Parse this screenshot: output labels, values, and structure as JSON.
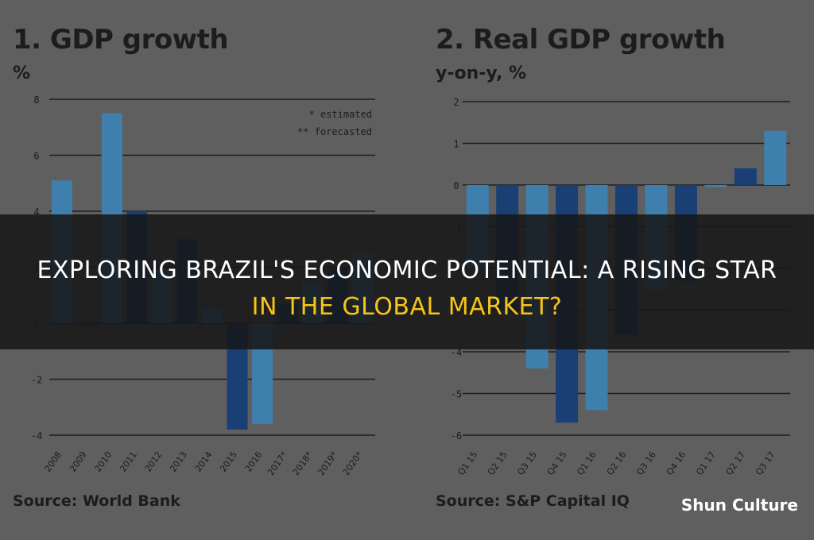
{
  "headline": {
    "line1": "EXPLORING BRAZIL'S ECONOMIC POTENTIAL: A RISING STAR",
    "line2": "IN THE GLOBAL MARKET?"
  },
  "brand": "Shun Culture",
  "colors": {
    "light_bar": "#3f7fae",
    "dark_bar": "#1a3f75",
    "gridline": "#1e1e1e",
    "text": "#1c1c1c",
    "background": "#5f5f5f",
    "headline_accent": "#f5c518"
  },
  "chart_data": [
    {
      "type": "bar",
      "title": "1. GDP growth",
      "unit": "%",
      "source": "Source: World Bank",
      "categories": [
        "2008",
        "2009",
        "2010",
        "2011",
        "2012",
        "2013",
        "2014",
        "2015",
        "2016",
        "2017*",
        "2018*",
        "2019*",
        "2020*"
      ],
      "values": [
        5.1,
        -0.1,
        7.5,
        4.0,
        1.9,
        3.0,
        0.5,
        -3.8,
        -3.6,
        0.7,
        1.5,
        2.0,
        2.5
      ],
      "shades": [
        "light",
        "dark",
        "light",
        "dark",
        "light",
        "dark",
        "light",
        "dark",
        "light",
        "dark",
        "light",
        "dark",
        "light"
      ],
      "ylim": [
        -4,
        8
      ],
      "yticks": [
        -4,
        -2,
        0,
        2,
        4,
        6,
        8
      ],
      "ytick_labels": [
        "-4",
        "-2",
        "0",
        "2",
        "4",
        "6",
        "8"
      ],
      "legend": [
        "* estimated",
        "** forecasted"
      ],
      "legend_position": "top-right",
      "grid": true
    },
    {
      "type": "bar",
      "title": "2. Real GDP growth",
      "unit": "y-on-y, %",
      "source": "Source: S&P Capital IQ",
      "categories": [
        "Q1 15",
        "Q2 15",
        "Q3 15",
        "Q4 15",
        "Q1 16",
        "Q2 16",
        "Q3 16",
        "Q4 16",
        "Q1 17",
        "Q2 17",
        "Q3 17"
      ],
      "values": [
        -2.0,
        -3.0,
        -4.4,
        -5.7,
        -5.4,
        -3.6,
        -2.5,
        -2.3,
        -0.05,
        0.4,
        1.3
      ],
      "shades": [
        "light",
        "dark",
        "light",
        "dark",
        "light",
        "dark",
        "light",
        "dark",
        "light",
        "dark",
        "light"
      ],
      "ylim": [
        -6,
        2
      ],
      "yticks": [
        -6,
        -5,
        -4,
        -3,
        -2,
        -1,
        0,
        1,
        2
      ],
      "ytick_labels": [
        "-6",
        "-5",
        "-4",
        "-3",
        "-2",
        "-1",
        "0",
        "1",
        "2"
      ],
      "grid": true
    }
  ]
}
